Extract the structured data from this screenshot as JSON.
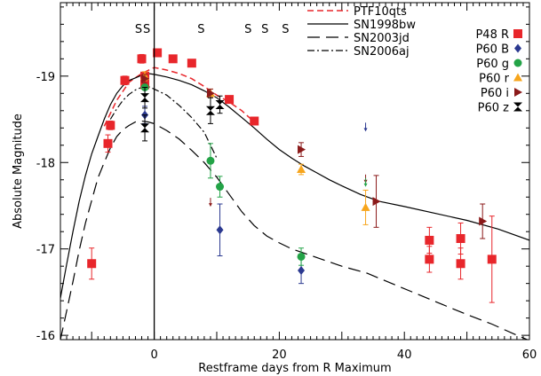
{
  "chart_data": {
    "type": "scatter",
    "xlabel": "Restframe days from R Maximum",
    "ylabel": "Absolute Magnitude",
    "xlim": [
      -15,
      60
    ],
    "ylim": [
      -19.85,
      -15.95
    ],
    "y_inverted": true,
    "grid": false,
    "legend_position": "top-right",
    "x_ticks": [
      -15,
      -14,
      -13,
      -12,
      -11,
      -10,
      -9,
      -8,
      -7,
      -6,
      -5,
      -4,
      -3,
      -2,
      -1,
      0,
      1,
      2,
      3,
      4,
      5,
      6,
      7,
      8,
      9,
      10,
      11,
      12,
      13,
      14,
      15,
      16,
      17,
      18,
      19,
      20,
      21,
      22,
      23,
      24,
      25,
      26,
      27,
      28,
      29,
      30,
      31,
      32,
      33,
      34,
      35,
      36,
      37,
      38,
      39,
      40,
      41,
      42,
      43,
      44,
      45,
      46,
      47,
      48,
      49,
      50,
      51,
      52,
      53,
      54,
      55,
      56,
      57,
      58,
      59,
      60
    ],
    "x_tick_labels": [
      {
        "value": 0,
        "label": "0"
      },
      {
        "value": 20,
        "label": "20"
      },
      {
        "value": 40,
        "label": "40"
      },
      {
        "value": 60,
        "label": "60"
      }
    ],
    "y_minor_step": 0.2,
    "y_tick_labels": [
      {
        "value": -19,
        "label": "-19"
      },
      {
        "value": -18,
        "label": "-18"
      },
      {
        "value": -17,
        "label": "-17"
      },
      {
        "value": -16,
        "label": "-16"
      }
    ],
    "vertical_line_x": 0,
    "spectra_marks": {
      "label": "S",
      "x": [
        -2.5,
        -1.2,
        7.5,
        15,
        17.7,
        21
      ]
    },
    "lines": [
      {
        "name": "PTF10qts",
        "color": "#e8262b",
        "dash": "7,4",
        "width": 1.5,
        "points": [
          [
            -8,
            -18.42
          ],
          [
            -6,
            -18.72
          ],
          [
            -4,
            -18.93
          ],
          [
            -2,
            -19.03
          ],
          [
            0,
            -19.1
          ],
          [
            2,
            -19.07
          ],
          [
            4,
            -19.03
          ],
          [
            6,
            -18.97
          ],
          [
            8,
            -18.88
          ],
          [
            10,
            -18.78
          ],
          [
            12,
            -18.7
          ],
          [
            14,
            -18.6
          ],
          [
            15.5,
            -18.5
          ]
        ]
      },
      {
        "name": "SN1998bw",
        "color": "#000000",
        "dash": "",
        "width": 1.2,
        "points": [
          [
            -15,
            -16.43
          ],
          [
            -14,
            -16.82
          ],
          [
            -13,
            -17.2
          ],
          [
            -12,
            -17.55
          ],
          [
            -11,
            -17.85
          ],
          [
            -10,
            -18.1
          ],
          [
            -9,
            -18.3
          ],
          [
            -8,
            -18.5
          ],
          [
            -7,
            -18.67
          ],
          [
            -6,
            -18.8
          ],
          [
            -5,
            -18.89
          ],
          [
            -4,
            -18.95
          ],
          [
            -3,
            -18.98
          ],
          [
            -2,
            -19.01
          ],
          [
            -1,
            -19.03
          ],
          [
            0,
            -19.02
          ],
          [
            2,
            -18.99
          ],
          [
            4,
            -18.95
          ],
          [
            6,
            -18.9
          ],
          [
            8,
            -18.83
          ],
          [
            10,
            -18.75
          ],
          [
            12,
            -18.64
          ],
          [
            14,
            -18.52
          ],
          [
            16,
            -18.4
          ],
          [
            18,
            -18.27
          ],
          [
            20,
            -18.15
          ],
          [
            22,
            -18.05
          ],
          [
            24,
            -17.96
          ],
          [
            26,
            -17.88
          ],
          [
            28,
            -17.8
          ],
          [
            30,
            -17.73
          ],
          [
            33,
            -17.63
          ],
          [
            36,
            -17.55
          ],
          [
            40,
            -17.49
          ],
          [
            45,
            -17.41
          ],
          [
            50,
            -17.33
          ],
          [
            55,
            -17.23
          ],
          [
            60,
            -17.1
          ]
        ]
      },
      {
        "name": "SN2003jd",
        "color": "#000000",
        "dash": "14,7",
        "width": 1.2,
        "points": [
          [
            -15,
            -15.95
          ],
          [
            -14,
            -16.28
          ],
          [
            -13,
            -16.62
          ],
          [
            -12,
            -16.98
          ],
          [
            -11,
            -17.3
          ],
          [
            -10,
            -17.56
          ],
          [
            -9,
            -17.82
          ],
          [
            -8,
            -18.0
          ],
          [
            -7,
            -18.17
          ],
          [
            -6,
            -18.3
          ],
          [
            -5,
            -18.38
          ],
          [
            -4,
            -18.43
          ],
          [
            -3,
            -18.47
          ],
          [
            -2,
            -18.48
          ],
          [
            -1,
            -18.47
          ],
          [
            0,
            -18.45
          ],
          [
            2,
            -18.37
          ],
          [
            4,
            -18.27
          ],
          [
            6,
            -18.14
          ],
          [
            8,
            -18.0
          ],
          [
            10,
            -17.83
          ],
          [
            12,
            -17.63
          ],
          [
            14,
            -17.43
          ],
          [
            16,
            -17.27
          ],
          [
            18,
            -17.15
          ],
          [
            20,
            -17.07
          ],
          [
            22,
            -17.0
          ],
          [
            24,
            -16.95
          ],
          [
            26,
            -16.9
          ],
          [
            28,
            -16.85
          ],
          [
            30,
            -16.8
          ],
          [
            34,
            -16.72
          ],
          [
            38,
            -16.6
          ],
          [
            42,
            -16.48
          ],
          [
            46,
            -16.36
          ],
          [
            50,
            -16.24
          ],
          [
            54,
            -16.13
          ],
          [
            58,
            -16.0
          ],
          [
            60,
            -15.94
          ]
        ]
      },
      {
        "name": "SN2006aj",
        "color": "#000000",
        "dash": "8,3,2,3",
        "width": 1.2,
        "points": [
          [
            -7,
            -18.5
          ],
          [
            -6,
            -18.62
          ],
          [
            -5,
            -18.72
          ],
          [
            -4,
            -18.79
          ],
          [
            -3,
            -18.84
          ],
          [
            -2,
            -18.87
          ],
          [
            -1,
            -18.88
          ],
          [
            0,
            -18.85
          ],
          [
            2,
            -18.78
          ],
          [
            4,
            -18.66
          ],
          [
            6,
            -18.52
          ],
          [
            8,
            -18.35
          ],
          [
            9,
            -18.2
          ],
          [
            10,
            -18.05
          ]
        ]
      }
    ],
    "series": [
      {
        "name": "P48 R",
        "marker": "square",
        "color": "#e8262b",
        "points": [
          [
            -10,
            -16.83,
            0.18
          ],
          [
            -7.4,
            -18.22,
            0.1
          ],
          [
            -7,
            -18.43,
            0.05
          ],
          [
            -4.7,
            -18.95,
            0.05
          ],
          [
            -2,
            -19.2,
            0.05
          ],
          [
            -1.5,
            -18.9,
            0.05
          ],
          [
            -1.5,
            -19.0,
            0.05
          ],
          [
            0.5,
            -19.27,
            0.04
          ],
          [
            3,
            -19.2,
            0.04
          ],
          [
            6,
            -19.15,
            0.04
          ],
          [
            12,
            -18.73,
            0.04
          ],
          [
            16,
            -18.48,
            0.04
          ],
          [
            44,
            -17.1,
            0.15
          ],
          [
            44,
            -16.88,
            0.15
          ],
          [
            49,
            -17.12,
            0.18
          ],
          [
            49,
            -16.83,
            0.18
          ],
          [
            54,
            -16.88,
            0.5
          ]
        ]
      },
      {
        "name": "P60 B",
        "marker": "diamond",
        "color": "#2b3990",
        "points": [
          [
            -1.5,
            -18.55,
            0.1
          ],
          [
            10.5,
            -17.22,
            0.3
          ],
          [
            23.5,
            -16.75,
            0.15
          ]
        ]
      },
      {
        "name": "P60 g",
        "marker": "circle",
        "color": "#23a347",
        "points": [
          [
            -1.5,
            -18.87,
            0.08
          ],
          [
            9,
            -18.02,
            0.2
          ],
          [
            10.5,
            -17.72,
            0.12
          ],
          [
            23.5,
            -16.91,
            0.1
          ]
        ]
      },
      {
        "name": "P60 r",
        "marker": "triangle",
        "color": "#f7a51c",
        "points": [
          [
            -1.5,
            -19.0,
            0.05
          ],
          [
            9,
            -18.8,
            0.05
          ],
          [
            23.5,
            -17.92,
            0.06
          ],
          [
            33.8,
            -17.48,
            0.2
          ]
        ]
      },
      {
        "name": "P60 i",
        "marker": "triangle-right",
        "color": "#8b1a1a",
        "points": [
          [
            -1.5,
            -18.97,
            0.05
          ],
          [
            9,
            -18.8,
            0.05
          ],
          [
            23.5,
            -18.15,
            0.08
          ],
          [
            35.5,
            -17.55,
            0.3
          ],
          [
            52.5,
            -17.32,
            0.2
          ]
        ]
      },
      {
        "name": "P60 z",
        "marker": "bowtie",
        "color": "#000000",
        "points": [
          [
            -1.5,
            -18.4,
            0.15
          ],
          [
            -1.5,
            -18.75,
            0.12
          ],
          [
            9,
            -18.6,
            0.15
          ],
          [
            10.5,
            -18.67,
            0.1
          ]
        ]
      }
    ],
    "upper_limits": [
      {
        "x": 33.8,
        "y": -18.42,
        "color": "#2b3990"
      },
      {
        "x": 33.8,
        "y": -17.82,
        "color": "#8b1a1a"
      },
      {
        "x": 33.8,
        "y": -17.78,
        "color": "#23a347"
      },
      {
        "x": 9,
        "y": -17.55,
        "color": "#8b1a1a"
      }
    ]
  }
}
